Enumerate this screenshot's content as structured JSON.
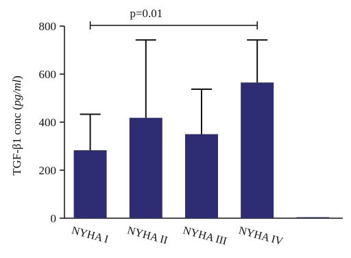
{
  "chart_data": {
    "type": "bar",
    "categories": [
      "NYHA I",
      "NYHA II",
      "NYHA III",
      "NYHA IV",
      ""
    ],
    "values": [
      283,
      418,
      350,
      565,
      0
    ],
    "error_upper": [
      433,
      742,
      537,
      742,
      null
    ],
    "ylabel_main": "TGF-β1 conc (",
    "ylabel_unit": "pg/ml",
    "ylabel_close": ")",
    "xlabel": "",
    "ylim": [
      0,
      800
    ],
    "yticks": [
      0,
      200,
      400,
      600,
      800
    ],
    "ytick_labels": [
      "0",
      "200",
      "400",
      "600",
      "800"
    ],
    "bar_color": "#2e2d73",
    "grid": false,
    "annotation": {
      "text": "p=0.01",
      "from_category": 0,
      "to_category": 3
    }
  }
}
